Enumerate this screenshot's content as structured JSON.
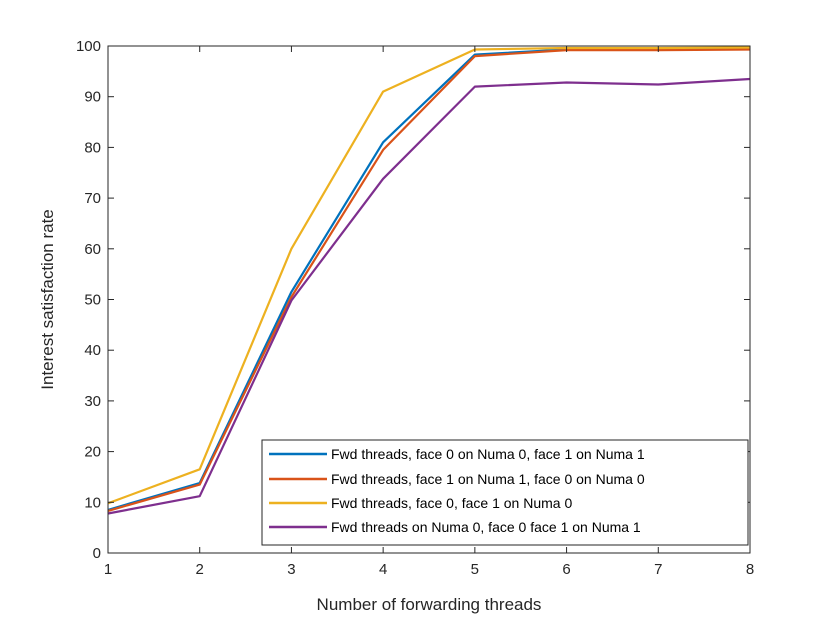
{
  "chart_data": {
    "type": "line",
    "xlabel": "Number of forwarding threads",
    "ylabel": "Interest satisfaction rate",
    "xlim": [
      1,
      8
    ],
    "ylim": [
      0,
      100
    ],
    "xticks": [
      1,
      2,
      3,
      4,
      5,
      6,
      7,
      8
    ],
    "yticks": [
      0,
      10,
      20,
      30,
      40,
      50,
      60,
      70,
      80,
      90,
      100
    ],
    "grid": false,
    "legend_position": "bottom-right",
    "x": [
      1,
      2,
      3,
      4,
      5,
      6,
      7,
      8
    ],
    "series": [
      {
        "name": "Fwd threads, face 0 on Numa 0, face 1 on Numa 1",
        "color": "#0072BD",
        "values": [
          8.5,
          13.8,
          51.5,
          81,
          98.3,
          99.3,
          99.3,
          99.5
        ]
      },
      {
        "name": "Fwd threads, face 1 on Numa 1, face 0 on Numa 0",
        "color": "#D95319",
        "values": [
          8.3,
          13.5,
          50.5,
          79.5,
          98,
          99.2,
          99.2,
          99.3
        ]
      },
      {
        "name": "Fwd threads, face 0, face 1 on Numa 0",
        "color": "#EDB120",
        "values": [
          9.8,
          16.5,
          60,
          91,
          99.3,
          99.6,
          99.6,
          99.7
        ]
      },
      {
        "name": "Fwd threads on Numa 0, face 0 face 1 on Numa 1",
        "color": "#7E2F8E",
        "values": [
          7.8,
          11.2,
          49.8,
          73.8,
          92,
          92.8,
          92.4,
          93.5
        ]
      }
    ]
  }
}
